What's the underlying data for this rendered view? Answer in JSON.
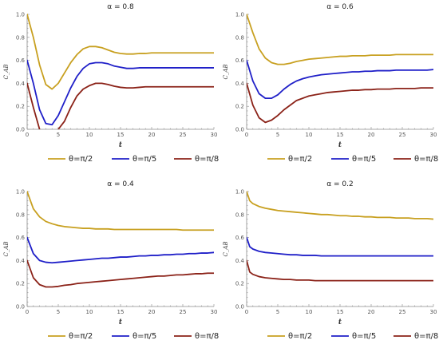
{
  "colors": {
    "s1": "#c8a020",
    "s2": "#1f1fc8",
    "s3": "#8b2218"
  },
  "chart_data": [
    {
      "type": "line",
      "title": "α = 0.8",
      "xlabel": "t",
      "ylabel": "C_AB",
      "xlim": [
        0,
        30
      ],
      "ylim": [
        0,
        1
      ],
      "xticks": [
        "0",
        "5",
        "10",
        "15",
        "20",
        "25",
        "30"
      ],
      "yticks": [
        "0.0",
        "0.2",
        "0.4",
        "0.6",
        "0.8",
        "1.0"
      ],
      "legend_position": "bottom",
      "x": [
        0,
        1,
        2,
        3,
        4,
        5,
        6,
        7,
        8,
        9,
        10,
        11,
        12,
        13,
        14,
        15,
        16,
        17,
        18,
        19,
        20,
        21,
        22,
        23,
        24,
        25,
        26,
        27,
        28,
        29,
        30
      ],
      "series": [
        {
          "name": "θ=π/2",
          "color": "s1",
          "values": [
            1.0,
            0.8,
            0.56,
            0.39,
            0.35,
            0.4,
            0.49,
            0.58,
            0.65,
            0.7,
            0.72,
            0.72,
            0.71,
            0.69,
            0.67,
            0.66,
            0.655,
            0.655,
            0.66,
            0.66,
            0.665,
            0.665,
            0.665,
            0.665,
            0.665,
            0.665,
            0.665,
            0.665,
            0.665,
            0.665,
            0.665
          ]
        },
        {
          "name": "θ=π/5",
          "color": "s2",
          "values": [
            0.6,
            0.4,
            0.17,
            0.05,
            0.04,
            0.12,
            0.24,
            0.36,
            0.46,
            0.53,
            0.57,
            0.58,
            0.58,
            0.57,
            0.55,
            0.54,
            0.53,
            0.53,
            0.535,
            0.535,
            0.535,
            0.535,
            0.535,
            0.535,
            0.535,
            0.535,
            0.535,
            0.535,
            0.535,
            0.535,
            0.535
          ]
        },
        {
          "name": "θ=π/8",
          "color": "s3",
          "values": [
            0.4,
            0.19,
            0.0,
            null,
            null,
            0.0,
            0.07,
            0.19,
            0.29,
            0.35,
            0.38,
            0.4,
            0.4,
            0.39,
            0.375,
            0.365,
            0.36,
            0.36,
            0.365,
            0.37,
            0.37,
            0.37,
            0.37,
            0.37,
            0.37,
            0.37,
            0.37,
            0.37,
            0.37,
            0.37,
            0.37
          ]
        }
      ]
    },
    {
      "type": "line",
      "title": "α = 0.6",
      "xlabel": "t",
      "ylabel": "C_AB",
      "xlim": [
        0,
        30
      ],
      "ylim": [
        0,
        1
      ],
      "xticks": [
        "0",
        "5",
        "10",
        "15",
        "20",
        "25",
        "30"
      ],
      "yticks": [
        "0.0",
        "0.2",
        "0.4",
        "0.6",
        "0.8",
        "1.0"
      ],
      "legend_position": "bottom",
      "x": [
        0,
        1,
        2,
        3,
        4,
        5,
        6,
        7,
        8,
        9,
        10,
        11,
        12,
        13,
        14,
        15,
        16,
        17,
        18,
        19,
        20,
        21,
        22,
        23,
        24,
        25,
        26,
        27,
        28,
        29,
        30
      ],
      "series": [
        {
          "name": "θ=π/2",
          "color": "s1",
          "values": [
            1.0,
            0.84,
            0.7,
            0.62,
            0.58,
            0.565,
            0.565,
            0.575,
            0.59,
            0.6,
            0.61,
            0.615,
            0.62,
            0.625,
            0.63,
            0.635,
            0.635,
            0.64,
            0.64,
            0.64,
            0.645,
            0.645,
            0.645,
            0.645,
            0.65,
            0.65,
            0.65,
            0.65,
            0.65,
            0.65,
            0.65
          ]
        },
        {
          "name": "θ=π/5",
          "color": "s2",
          "values": [
            0.6,
            0.42,
            0.31,
            0.27,
            0.27,
            0.3,
            0.35,
            0.39,
            0.42,
            0.44,
            0.455,
            0.465,
            0.475,
            0.48,
            0.485,
            0.49,
            0.495,
            0.5,
            0.5,
            0.505,
            0.505,
            0.51,
            0.51,
            0.51,
            0.515,
            0.515,
            0.515,
            0.515,
            0.515,
            0.515,
            0.52
          ]
        },
        {
          "name": "θ=π/8",
          "color": "s3",
          "values": [
            0.4,
            0.21,
            0.1,
            0.06,
            0.08,
            0.12,
            0.17,
            0.21,
            0.25,
            0.27,
            0.29,
            0.3,
            0.31,
            0.32,
            0.325,
            0.33,
            0.335,
            0.34,
            0.34,
            0.345,
            0.345,
            0.35,
            0.35,
            0.35,
            0.355,
            0.355,
            0.355,
            0.355,
            0.36,
            0.36,
            0.36
          ]
        }
      ]
    },
    {
      "type": "line",
      "title": "α = 0.4",
      "xlabel": "t",
      "ylabel": "C_AB",
      "xlim": [
        0,
        30
      ],
      "ylim": [
        0,
        1
      ],
      "xticks": [
        "0",
        "5",
        "10",
        "15",
        "20",
        "25",
        "30"
      ],
      "yticks": [
        "0.0",
        "0.2",
        "0.4",
        "0.6",
        "0.8",
        "1.0"
      ],
      "legend_position": "bottom",
      "x": [
        0,
        1,
        2,
        3,
        4,
        5,
        6,
        7,
        8,
        9,
        10,
        11,
        12,
        13,
        14,
        15,
        16,
        17,
        18,
        19,
        20,
        21,
        22,
        23,
        24,
        25,
        26,
        27,
        28,
        29,
        30
      ],
      "series": [
        {
          "name": "θ=π/2",
          "color": "s1",
          "values": [
            1.0,
            0.85,
            0.78,
            0.74,
            0.72,
            0.705,
            0.695,
            0.69,
            0.685,
            0.68,
            0.68,
            0.675,
            0.675,
            0.675,
            0.67,
            0.67,
            0.67,
            0.67,
            0.67,
            0.67,
            0.67,
            0.67,
            0.67,
            0.67,
            0.67,
            0.665,
            0.665,
            0.665,
            0.665,
            0.665,
            0.665
          ]
        },
        {
          "name": "θ=π/5",
          "color": "s2",
          "values": [
            0.6,
            0.46,
            0.4,
            0.385,
            0.38,
            0.385,
            0.39,
            0.395,
            0.4,
            0.405,
            0.41,
            0.415,
            0.42,
            0.42,
            0.425,
            0.43,
            0.43,
            0.435,
            0.44,
            0.44,
            0.445,
            0.445,
            0.45,
            0.45,
            0.455,
            0.455,
            0.46,
            0.46,
            0.465,
            0.465,
            0.47
          ]
        },
        {
          "name": "θ=π/8",
          "color": "s3",
          "values": [
            0.4,
            0.25,
            0.19,
            0.17,
            0.17,
            0.175,
            0.185,
            0.19,
            0.2,
            0.205,
            0.21,
            0.215,
            0.22,
            0.225,
            0.23,
            0.235,
            0.24,
            0.245,
            0.25,
            0.255,
            0.26,
            0.265,
            0.265,
            0.27,
            0.275,
            0.275,
            0.28,
            0.285,
            0.285,
            0.29,
            0.29
          ]
        }
      ]
    },
    {
      "type": "line",
      "title": "α = 0.2",
      "xlabel": "t",
      "ylabel": "C_AB",
      "xlim": [
        0,
        30
      ],
      "ylim": [
        0,
        1
      ],
      "xticks": [
        "0",
        "5",
        "10",
        "15",
        "20",
        "25",
        "30"
      ],
      "yticks": [
        "0.0",
        "0.2",
        "0.4",
        "0.6",
        "0.8",
        "1.0"
      ],
      "legend_position": "bottom",
      "x": [
        0,
        0.5,
        1,
        2,
        3,
        4,
        5,
        6,
        7,
        8,
        9,
        10,
        11,
        12,
        13,
        14,
        15,
        16,
        17,
        18,
        19,
        20,
        21,
        22,
        23,
        24,
        25,
        26,
        27,
        28,
        29,
        30
      ],
      "series": [
        {
          "name": "θ=π/2",
          "color": "s1",
          "values": [
            1.0,
            0.92,
            0.895,
            0.87,
            0.855,
            0.845,
            0.835,
            0.83,
            0.825,
            0.82,
            0.815,
            0.81,
            0.805,
            0.8,
            0.8,
            0.795,
            0.79,
            0.79,
            0.785,
            0.785,
            0.78,
            0.78,
            0.775,
            0.775,
            0.775,
            0.77,
            0.77,
            0.77,
            0.765,
            0.765,
            0.765,
            0.76
          ]
        },
        {
          "name": "θ=π/5",
          "color": "s2",
          "values": [
            0.6,
            0.52,
            0.5,
            0.48,
            0.47,
            0.465,
            0.46,
            0.455,
            0.45,
            0.45,
            0.445,
            0.445,
            0.445,
            0.44,
            0.44,
            0.44,
            0.44,
            0.44,
            0.44,
            0.44,
            0.44,
            0.44,
            0.44,
            0.44,
            0.44,
            0.44,
            0.44,
            0.44,
            0.44,
            0.44,
            0.44,
            0.44
          ]
        },
        {
          "name": "θ=π/8",
          "color": "s3",
          "values": [
            0.4,
            0.3,
            0.28,
            0.26,
            0.25,
            0.245,
            0.24,
            0.235,
            0.235,
            0.23,
            0.23,
            0.23,
            0.225,
            0.225,
            0.225,
            0.225,
            0.225,
            0.225,
            0.225,
            0.225,
            0.225,
            0.225,
            0.225,
            0.225,
            0.225,
            0.225,
            0.225,
            0.225,
            0.225,
            0.225,
            0.225,
            0.225
          ]
        }
      ]
    }
  ]
}
